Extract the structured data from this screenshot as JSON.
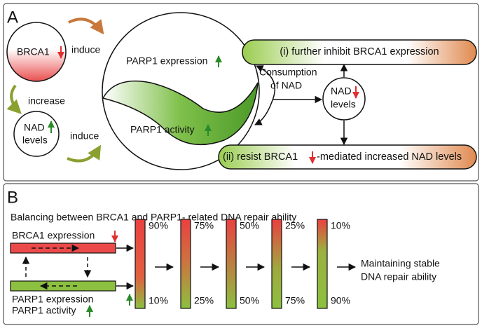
{
  "panel_a": {
    "label": "A",
    "brca1": "BRCA1",
    "induce_top": "induce",
    "increase": "increase",
    "nad_left": {
      "line1": "NAD",
      "line2": "levels"
    },
    "induce_bottom": "induce",
    "parp1_expression": "PARP1 expression",
    "parp1_activity": "PARP1 activity",
    "consumption": {
      "line1": "Consumption",
      "line2": "of NAD"
    },
    "nad_right": {
      "line1": "NAD",
      "line2": "levels"
    },
    "outcome_i": "(i) further inhibit BRCA1 expression",
    "outcome_ii": {
      "before": "(ii) resist BRCA1",
      "after": "-mediated increased NAD levels"
    }
  },
  "panel_b": {
    "label": "B",
    "title": "Balancing between BRCA1 and PARP1- related DNA repair ability",
    "brca1_expression": "BRCA1 expression",
    "parp1_expression": "PARP1 expression",
    "parp1_activity": "PARP1 activity",
    "bars": [
      {
        "top": "90%",
        "bottom": "10%"
      },
      {
        "top": "75%",
        "bottom": "25%"
      },
      {
        "top": "50%",
        "bottom": "50%"
      },
      {
        "top": "25%",
        "bottom": "75%"
      },
      {
        "top": "10%",
        "bottom": "90%"
      }
    ],
    "result": {
      "line1": "Maintaining stable",
      "line2": "DNA repair ability"
    }
  }
}
